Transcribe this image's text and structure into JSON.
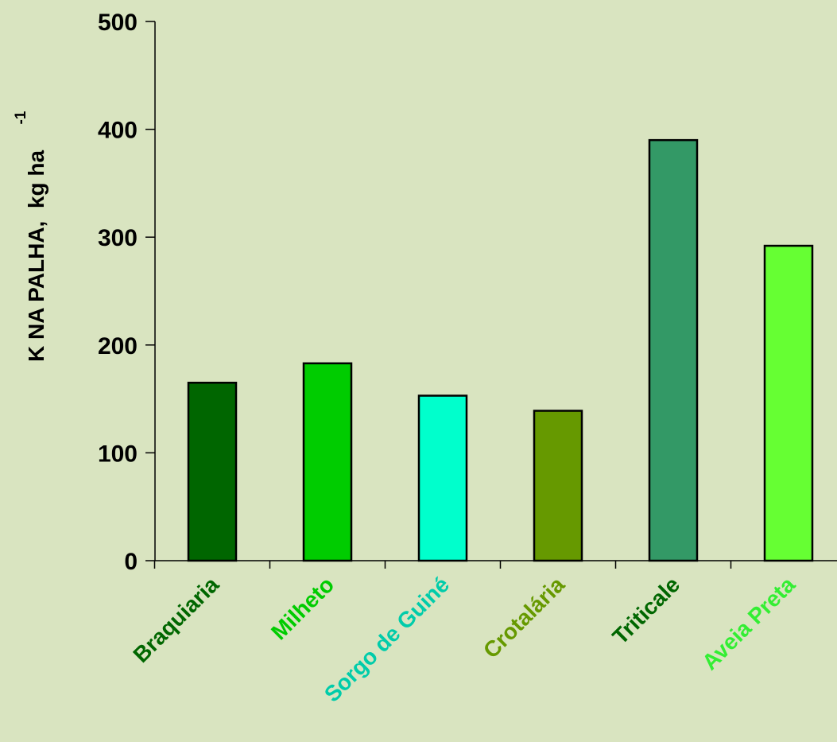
{
  "chart_data": {
    "type": "bar",
    "ylabel": "K NA PALHA,  kg ha",
    "ylabel_superscript": "-1",
    "xlabel": "",
    "ylim": [
      0,
      500
    ],
    "yticks": [
      "0",
      "100",
      "200",
      "300",
      "400",
      "500"
    ],
    "grid": false,
    "categories": [
      "Braquiaria",
      "Milheto",
      "Sorgo de Guiné",
      "Crotalária",
      "Triticale",
      "Aveia Preta"
    ],
    "values": [
      165,
      183,
      153,
      139,
      390,
      292
    ],
    "bar_colors": [
      "#006600",
      "#00cc00",
      "#00ffcc",
      "#669900",
      "#339966",
      "#66ff33"
    ],
    "label_colors": [
      "#006600",
      "#00cc00",
      "#00ccaa",
      "#669900",
      "#006600",
      "#33ee33"
    ]
  }
}
